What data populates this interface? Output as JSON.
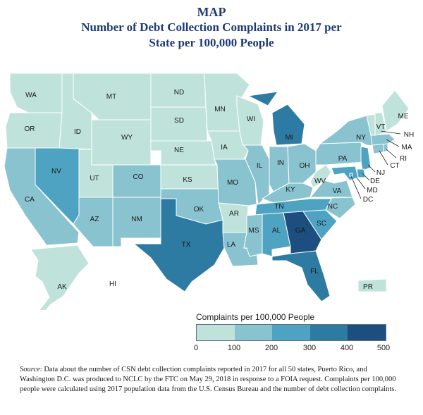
{
  "title": {
    "line1": "MAP",
    "line2": "Number of Debt Collection Complaints in 2017 per",
    "line3": "State per 100,000 People"
  },
  "colors": {
    "c0": "#bfe3da",
    "c1": "#89c3d0",
    "c2": "#4fa3c2",
    "c3": "#2d7aa3",
    "c4": "#1c4f7f",
    "border": "#ffffff"
  },
  "states": {
    "WA": "WA",
    "OR": "OR",
    "CA": "CA",
    "NV": "NV",
    "ID": "ID",
    "MT": "MT",
    "WY": "WY",
    "UT": "UT",
    "AZ": "AZ",
    "CO": "CO",
    "NM": "NM",
    "ND": "ND",
    "SD": "SD",
    "NE": "NE",
    "KS": "KS",
    "OK": "OK",
    "TX": "TX",
    "MN": "MN",
    "IA": "IA",
    "MO": "MO",
    "AR": "AR",
    "LA": "LA",
    "WI": "WI",
    "IL": "IL",
    "MI": "MI",
    "IN": "IN",
    "OH": "OH",
    "KY": "KY",
    "TN": "TN",
    "MS": "MS",
    "AL": "AL",
    "GA": "GA",
    "FL": "FL",
    "SC": "SC",
    "NC": "NC",
    "VA": "VA",
    "WV": "WV",
    "PA": "PA",
    "NY": "NY",
    "VT": "VT",
    "ME": "ME",
    "NH": "NH",
    "MA": "MA",
    "RI": "RI",
    "CT": "CT",
    "NJ": "NJ",
    "DE": "DE",
    "MD": "MD",
    "DC": "DC",
    "AK": "AK",
    "HI": "HI",
    "PR": "PR"
  },
  "legend": {
    "title": "Complaints per 100,000 People",
    "ticks": [
      "0",
      "100",
      "200",
      "300",
      "400",
      "500"
    ]
  },
  "source": {
    "label": "Source",
    "text": ": Data about the number of CSN debt collection complaints reported in 2017 for all 50 states, Puerto Rico, and Washington D.C. was produced to NCLC by the FTC on May 29, 2018 in response to a FOIA request. Complaints per 100,000 people were calculated using 2017 population data from the U.S. Census Bureau and the number of debt collection complaints."
  }
}
